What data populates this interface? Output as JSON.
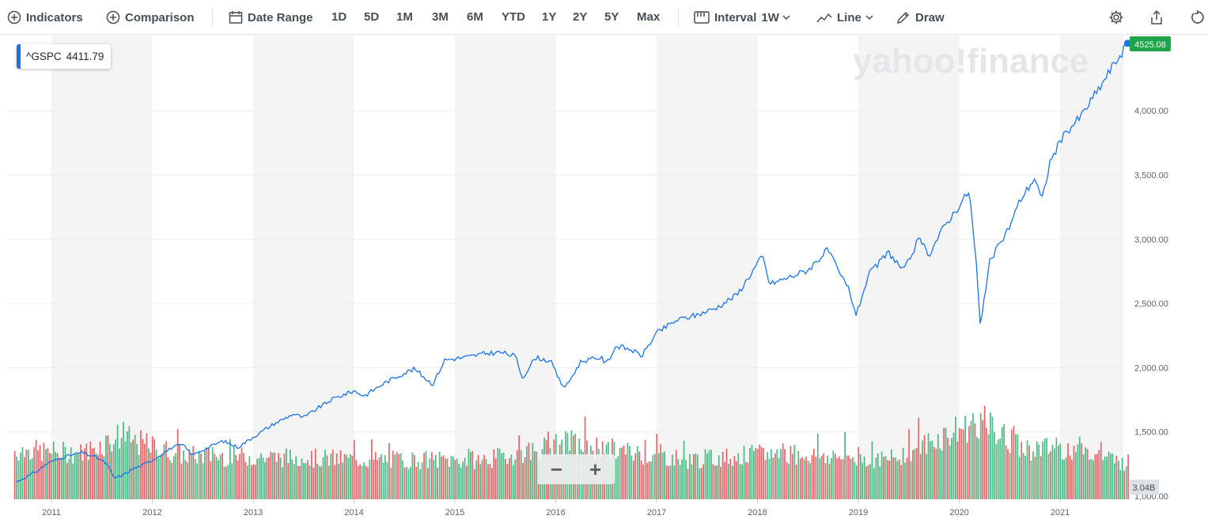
{
  "toolbar": {
    "indicators_label": "Indicators",
    "comparison_label": "Comparison",
    "date_range_label": "Date Range",
    "ranges": [
      "1D",
      "5D",
      "1M",
      "3M",
      "6M",
      "YTD",
      "1Y",
      "2Y",
      "5Y",
      "Max"
    ],
    "interval_label": "Interval",
    "interval_value": "1W",
    "chart_type_label": "Line",
    "draw_label": "Draw",
    "icons": [
      "plus-circle-icon",
      "calendar-icon",
      "interval-icon",
      "line-chart-icon",
      "pencil-icon",
      "gear-icon",
      "share-icon",
      "reset-icon"
    ]
  },
  "symbol_label": {
    "symbol": "^GSPC",
    "value": "4411.79"
  },
  "watermark": "yahoo!finance",
  "zoom": {
    "minus": "−",
    "plus": "+"
  },
  "colors": {
    "line": "#1a73e8",
    "up_volume": "#2cae6e",
    "down_volume": "#e5464b",
    "price_badge": "#1ea449",
    "volume_badge": "#dde2e6",
    "band": "#f4f4f4"
  },
  "chart_data": {
    "type": "line",
    "title": "",
    "xlabel": "",
    "ylabel": "",
    "x_tick_labels": [
      "2011",
      "2012",
      "2013",
      "2014",
      "2015",
      "2016",
      "2017",
      "2018",
      "2019",
      "2020",
      "2021"
    ],
    "y_tick_labels": [
      "4,000.00",
      "3,500.00",
      "3,000.00",
      "2,500.00",
      "2,000.00",
      "1,500.00",
      "1,000.00"
    ],
    "y_ticks": [
      4000,
      3500,
      3000,
      2500,
      2000,
      1500,
      1000
    ],
    "ylim": [
      1000,
      4720
    ],
    "xlim": [
      2010.63,
      2021.67
    ],
    "grid": true,
    "last_price_label": "4525.08",
    "last_volume_label": "3.04B",
    "series": [
      {
        "name": "^GSPC",
        "points": [
          [
            2010.65,
            1110
          ],
          [
            2010.75,
            1150
          ],
          [
            2010.85,
            1190
          ],
          [
            2010.95,
            1250
          ],
          [
            2011.1,
            1300
          ],
          [
            2011.3,
            1340
          ],
          [
            2011.45,
            1300
          ],
          [
            2011.55,
            1250
          ],
          [
            2011.62,
            1140
          ],
          [
            2011.7,
            1160
          ],
          [
            2011.8,
            1210
          ],
          [
            2011.9,
            1240
          ],
          [
            2012.0,
            1280
          ],
          [
            2012.2,
            1380
          ],
          [
            2012.3,
            1400
          ],
          [
            2012.4,
            1320
          ],
          [
            2012.5,
            1360
          ],
          [
            2012.7,
            1430
          ],
          [
            2012.85,
            1380
          ],
          [
            2013.0,
            1460
          ],
          [
            2013.2,
            1560
          ],
          [
            2013.4,
            1640
          ],
          [
            2013.5,
            1610
          ],
          [
            2013.65,
            1690
          ],
          [
            2013.8,
            1760
          ],
          [
            2014.0,
            1820
          ],
          [
            2014.1,
            1780
          ],
          [
            2014.3,
            1880
          ],
          [
            2014.5,
            1960
          ],
          [
            2014.6,
            1990
          ],
          [
            2014.78,
            1870
          ],
          [
            2014.9,
            2060
          ],
          [
            2015.1,
            2080
          ],
          [
            2015.3,
            2110
          ],
          [
            2015.45,
            2120
          ],
          [
            2015.6,
            2090
          ],
          [
            2015.67,
            1920
          ],
          [
            2015.8,
            2080
          ],
          [
            2015.95,
            2050
          ],
          [
            2016.05,
            1880
          ],
          [
            2016.1,
            1850
          ],
          [
            2016.25,
            2050
          ],
          [
            2016.45,
            2080
          ],
          [
            2016.5,
            2030
          ],
          [
            2016.6,
            2170
          ],
          [
            2016.75,
            2140
          ],
          [
            2016.85,
            2090
          ],
          [
            2017.0,
            2270
          ],
          [
            2017.2,
            2370
          ],
          [
            2017.4,
            2410
          ],
          [
            2017.6,
            2470
          ],
          [
            2017.8,
            2570
          ],
          [
            2018.0,
            2810
          ],
          [
            2018.05,
            2870
          ],
          [
            2018.12,
            2650
          ],
          [
            2018.3,
            2700
          ],
          [
            2018.5,
            2760
          ],
          [
            2018.7,
            2920
          ],
          [
            2018.8,
            2750
          ],
          [
            2018.9,
            2620
          ],
          [
            2018.98,
            2410
          ],
          [
            2019.1,
            2720
          ],
          [
            2019.3,
            2900
          ],
          [
            2019.35,
            2850
          ],
          [
            2019.45,
            2750
          ],
          [
            2019.6,
            3000
          ],
          [
            2019.7,
            2880
          ],
          [
            2019.85,
            3100
          ],
          [
            2020.0,
            3260
          ],
          [
            2020.1,
            3380
          ],
          [
            2020.17,
            2800
          ],
          [
            2020.21,
            2310
          ],
          [
            2020.3,
            2820
          ],
          [
            2020.5,
            3100
          ],
          [
            2020.6,
            3300
          ],
          [
            2020.75,
            3480
          ],
          [
            2020.82,
            3300
          ],
          [
            2020.9,
            3600
          ],
          [
            2021.0,
            3760
          ],
          [
            2021.1,
            3870
          ],
          [
            2021.2,
            3950
          ],
          [
            2021.4,
            4190
          ],
          [
            2021.5,
            4320
          ],
          [
            2021.6,
            4440
          ],
          [
            2021.67,
            4525
          ]
        ]
      }
    ],
    "volume": {
      "name": "Volume",
      "unit": "B",
      "last": 3.04,
      "weekly_levels": [
        {
          "year": 2010.7,
          "value": 21
        },
        {
          "year": 2011.3,
          "value": 20
        },
        {
          "year": 2011.65,
          "value": 27
        },
        {
          "year": 2012.3,
          "value": 19
        },
        {
          "year": 2013.3,
          "value": 18
        },
        {
          "year": 2014.3,
          "value": 17
        },
        {
          "year": 2015.3,
          "value": 17
        },
        {
          "year": 2016.1,
          "value": 24
        },
        {
          "year": 2017.3,
          "value": 17
        },
        {
          "year": 2018.2,
          "value": 20
        },
        {
          "year": 2019.3,
          "value": 17
        },
        {
          "year": 2020.2,
          "value": 34
        },
        {
          "year": 2020.6,
          "value": 22
        },
        {
          "year": 2021.2,
          "value": 22
        },
        {
          "year": 2021.6,
          "value": 16
        }
      ]
    }
  }
}
